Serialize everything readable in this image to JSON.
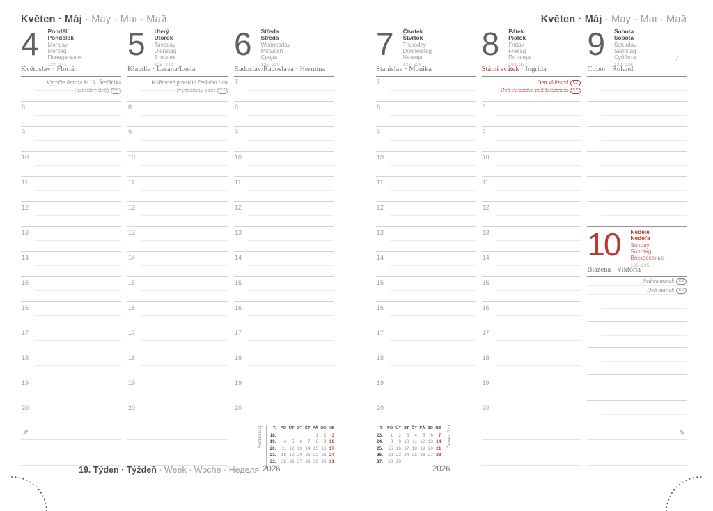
{
  "header": {
    "bold": "Květen · Máj",
    "light": "· May · Mai · Май"
  },
  "footer": {
    "week_bold": "19. Týden · Týždeň",
    "week_light": "· Week · Woche · Неделя",
    "year_left": "2026",
    "year_right": "2026"
  },
  "colors": {
    "red": "#bb3a31",
    "dark": "#4f4f4f",
    "gray": "#9c9c9c"
  },
  "icons": {
    "pencil": "✎",
    "moon": "☾"
  },
  "days": [
    {
      "num": "4",
      "bold": [
        "Pondělí",
        "Pondelok"
      ],
      "light": [
        "Monday",
        "Montag",
        "Понедельник"
      ],
      "yearday": "124–241",
      "nameday": "Květoslav · Florián",
      "hours": [
        "8",
        "9",
        "10",
        "11",
        "12",
        "13",
        "14",
        "15",
        "16",
        "17",
        "18",
        "19",
        "20"
      ],
      "top_note": {
        "color": "gray",
        "lines": [
          {
            "text": "Výročie úmrtia M. R. Štefánika"
          },
          {
            "text": "(pamätný deň)",
            "badge": "SK"
          }
        ]
      }
    },
    {
      "num": "5",
      "bold": [
        "Úterý",
        "Utorok"
      ],
      "light": [
        "Tuesday",
        "Dienstag",
        "Вторник"
      ],
      "yearday": "125–240",
      "nameday": "Klaudie · Lesana/Lesia",
      "hours": [
        "8",
        "9",
        "10",
        "11",
        "12",
        "13",
        "14",
        "15",
        "16",
        "17",
        "18",
        "19",
        "20"
      ],
      "top_note": {
        "color": "gray",
        "lines": [
          {
            "text": "Květnové povstání českého lidu"
          },
          {
            "text": "(významný den)",
            "badge": "CZ"
          }
        ]
      }
    },
    {
      "num": "6",
      "bold": [
        "Středa",
        "Streda"
      ],
      "light": [
        "Wednesday",
        "Mittwoch",
        "Среда"
      ],
      "yearday": "126–239",
      "nameday": "Radoslav/Radoslava · Hermína",
      "hours": [
        "7",
        "8",
        "9",
        "10",
        "11",
        "12",
        "13",
        "14",
        "15",
        "16",
        "17",
        "18",
        "19",
        "20"
      ]
    },
    {
      "num": "7",
      "bold": [
        "Čtvrtek",
        "Štvrtok"
      ],
      "light": [
        "Thursday",
        "Donnerstag",
        "Четверг"
      ],
      "yearday": "127–238",
      "nameday": "Stanislav · Monika",
      "hours": [
        "7",
        "8",
        "9",
        "10",
        "11",
        "12",
        "13",
        "14",
        "15",
        "16",
        "17",
        "18",
        "19",
        "20"
      ]
    },
    {
      "num": "8",
      "bold": [
        "Pátek",
        "Piatok"
      ],
      "light": [
        "Friday",
        "Freitag",
        "Пятница"
      ],
      "yearday": "128–237",
      "nameday_red": "Státní svátek",
      "nameday_rest": " · Ingrida",
      "hours": [
        "8",
        "9",
        "10",
        "11",
        "12",
        "13",
        "14",
        "15",
        "16",
        "17",
        "18",
        "19",
        "20"
      ],
      "top_note": {
        "color": "red",
        "lines": [
          {
            "text": "Den vítězství",
            "badge": "CZ"
          },
          {
            "text": "Deň víťazstva nad fašizmom",
            "badge": "SK"
          }
        ]
      }
    },
    {
      "num": "9",
      "bold": [
        "Sobota",
        "Sobota"
      ],
      "light": [
        "Saturday",
        "Samstag",
        "Суббота"
      ],
      "yearday": "129–236",
      "nameday": "Ctibor · Roland",
      "moon": "☾",
      "plain_slots": 6
    },
    {
      "num": "10",
      "red": true,
      "bold": [
        "Neděle",
        "Nedeľa"
      ],
      "light": [
        "Sunday",
        "Sonntag",
        "Воскресенье"
      ],
      "yearday": "130–235",
      "nameday": "Blažena · Viktória",
      "plain_slots": 5,
      "sunday_notes": [
        {
          "text": "Svátek matek",
          "badge": "CZ"
        },
        {
          "text": "Deň matiek",
          "badge": "SK"
        }
      ]
    }
  ],
  "minical_left": {
    "label": [
      "Květen",
      "Máj"
    ],
    "year": "2026",
    "header": [
      "T.",
      "PO",
      "ÚT",
      "ST",
      "ČT",
      "PÁ",
      "SO",
      "NE"
    ],
    "rows": [
      [
        "18.",
        "",
        "",
        "",
        "",
        "1",
        "2",
        "3"
      ],
      [
        "19.",
        "4",
        "5",
        "6",
        "7",
        "8",
        "9",
        "10"
      ],
      [
        "20.",
        "11",
        "12",
        "13",
        "14",
        "15",
        "16",
        "17"
      ],
      [
        "21.",
        "18",
        "19",
        "20",
        "21",
        "22",
        "23",
        "24"
      ],
      [
        "22.",
        "25",
        "26",
        "27",
        "28",
        "29",
        "30",
        "31"
      ]
    ]
  },
  "minical_right": {
    "label": [
      "Červen",
      "Jún"
    ],
    "year": "2026",
    "header": [
      "T.",
      "PO",
      "ÚT",
      "ST",
      "ČT",
      "PÁ",
      "SO",
      "NE"
    ],
    "rows": [
      [
        "23.",
        "1",
        "2",
        "3",
        "4",
        "5",
        "6",
        "7"
      ],
      [
        "24.",
        "8",
        "9",
        "10",
        "11",
        "12",
        "13",
        "14"
      ],
      [
        "25.",
        "15",
        "16",
        "17",
        "18",
        "19",
        "20",
        "21"
      ],
      [
        "26.",
        "22",
        "23",
        "24",
        "25",
        "26",
        "27",
        "28"
      ],
      [
        "27.",
        "29",
        "30",
        "",
        "",
        "",
        "",
        ""
      ]
    ]
  }
}
